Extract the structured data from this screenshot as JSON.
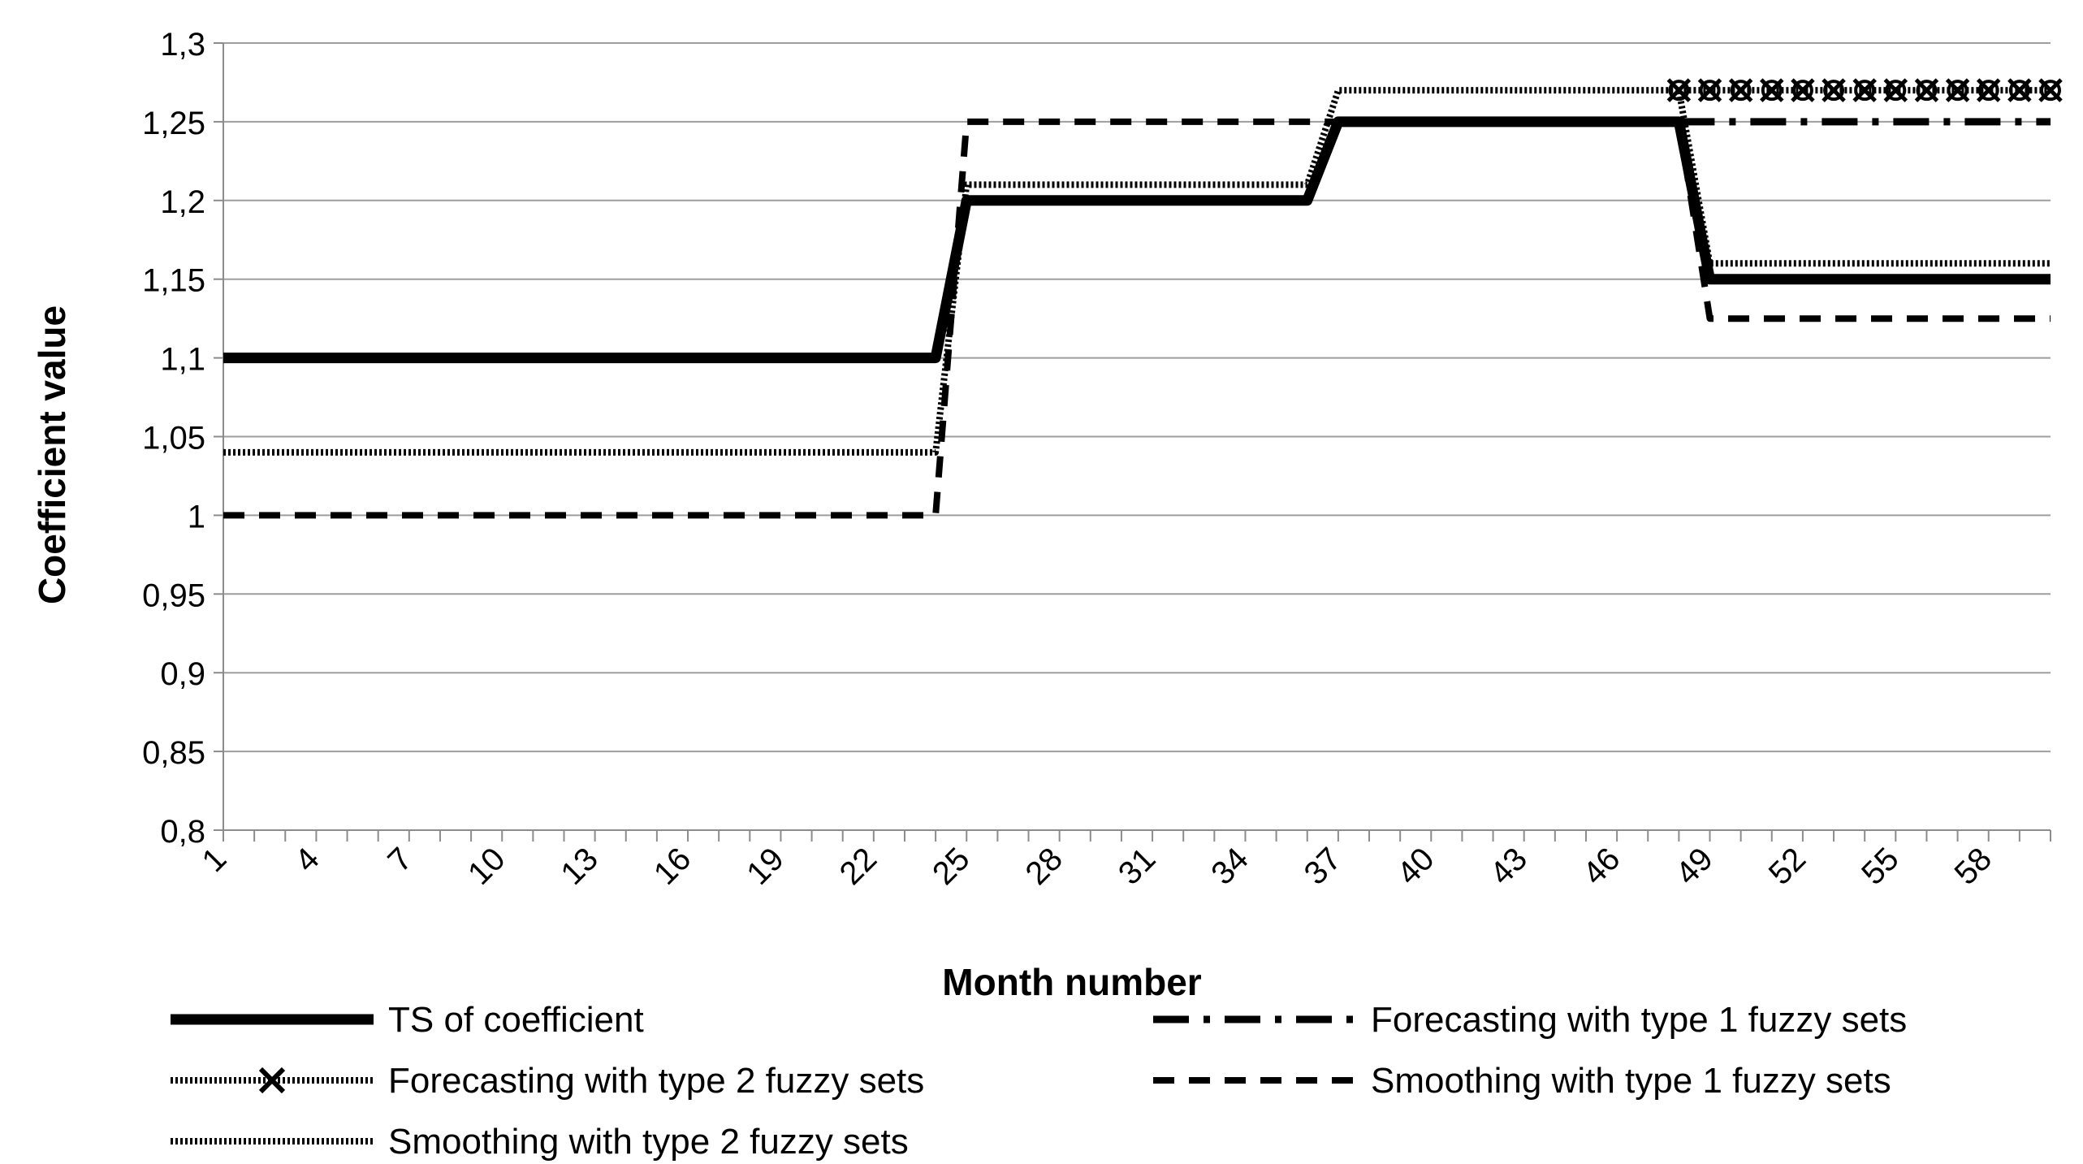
{
  "chart_data": {
    "type": "line",
    "title": "",
    "xlabel": "Month number",
    "ylabel": "Coefficient value",
    "ylim": [
      0.8,
      1.3
    ],
    "xlim": [
      1,
      60
    ],
    "y_ticks": [
      "0,8",
      "0,85",
      "0,9",
      "0,95",
      "1",
      "1,05",
      "1,1",
      "1,15",
      "1,2",
      "1,25",
      "1,3"
    ],
    "x_ticks": [
      "1",
      "4",
      "7",
      "10",
      "13",
      "16",
      "19",
      "22",
      "25",
      "28",
      "31",
      "34",
      "37",
      "40",
      "43",
      "46",
      "49",
      "52",
      "55",
      "58"
    ],
    "grid": "horizontal",
    "legend_position": "bottom",
    "series": [
      {
        "name": "TS of coefficient",
        "style": "solid-thick",
        "points": [
          [
            1,
            1.1
          ],
          [
            24,
            1.1
          ],
          [
            25,
            1.2
          ],
          [
            36,
            1.2
          ],
          [
            37,
            1.25
          ],
          [
            48,
            1.25
          ],
          [
            49,
            1.15
          ],
          [
            60,
            1.15
          ]
        ]
      },
      {
        "name": "Forecasting with type 1 fuzzy sets",
        "style": "dash-dot",
        "points": [
          [
            48,
            1.25
          ],
          [
            60,
            1.25
          ]
        ]
      },
      {
        "name": "Forecasting with type 2 fuzzy sets",
        "style": "dotted-x",
        "points": [
          [
            48,
            1.27
          ],
          [
            49,
            1.27
          ],
          [
            50,
            1.27
          ],
          [
            51,
            1.27
          ],
          [
            52,
            1.27
          ],
          [
            53,
            1.27
          ],
          [
            54,
            1.27
          ],
          [
            55,
            1.27
          ],
          [
            56,
            1.27
          ],
          [
            57,
            1.27
          ],
          [
            58,
            1.27
          ],
          [
            59,
            1.27
          ],
          [
            60,
            1.27
          ]
        ]
      },
      {
        "name": "Smoothing with type 1 fuzzy sets",
        "style": "dashed",
        "points": [
          [
            1,
            1.0
          ],
          [
            24,
            1.0
          ],
          [
            25,
            1.25
          ],
          [
            48,
            1.25
          ],
          [
            49,
            1.125
          ],
          [
            60,
            1.125
          ]
        ]
      },
      {
        "name": "Smoothing with type 2 fuzzy sets",
        "style": "dotted",
        "points": [
          [
            1,
            1.04
          ],
          [
            24,
            1.04
          ],
          [
            25,
            1.21
          ],
          [
            36,
            1.21
          ],
          [
            37,
            1.27
          ],
          [
            48,
            1.27
          ],
          [
            49,
            1.16
          ],
          [
            60,
            1.16
          ]
        ]
      }
    ],
    "colors": {
      "line": "#000000",
      "grid": "#9e9e9e",
      "axis": "#8c8c8c"
    }
  }
}
